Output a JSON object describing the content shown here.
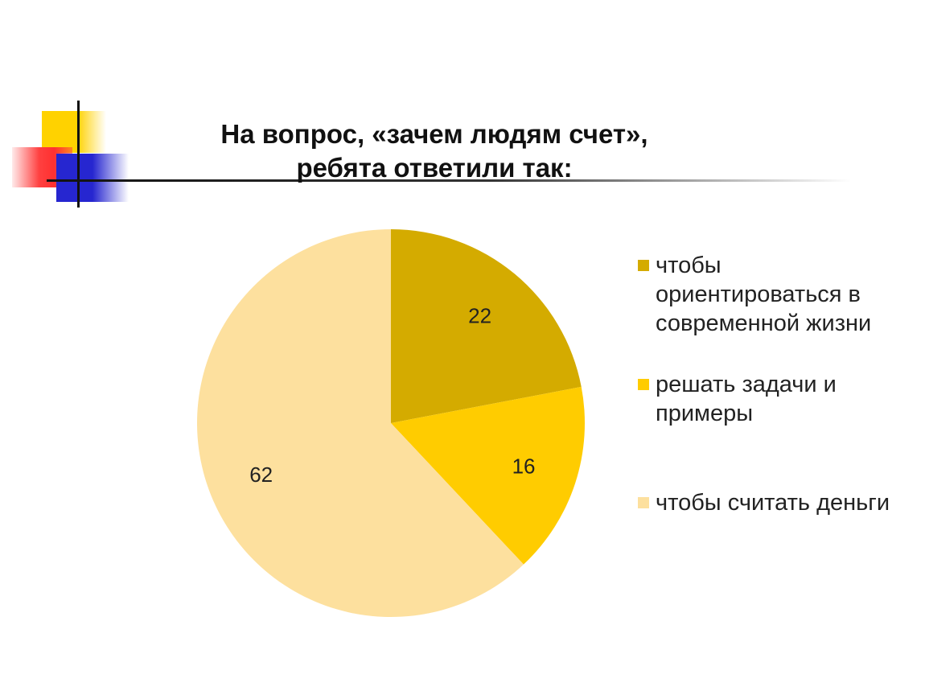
{
  "title": {
    "line1": "На вопрос, «зачем людям счет»,",
    "line2": "ребята ответили так:"
  },
  "colors": {
    "deco_yellow": "#ffd200",
    "deco_red": "#ff3030",
    "deco_blue": "#2626d0"
  },
  "chart_data": {
    "type": "pie",
    "slices": [
      {
        "label": "чтобы ориентироваться в современной жизни",
        "value": 22,
        "color": "#d4ab00"
      },
      {
        "label": "решать задачи и примеры",
        "value": 16,
        "color": "#ffcc00"
      },
      {
        "label": "чтобы считать деньги",
        "value": 62,
        "color": "#fde09e"
      }
    ],
    "legend_position": "right",
    "start_angle": "12 o'clock",
    "direction": "clockwise"
  }
}
